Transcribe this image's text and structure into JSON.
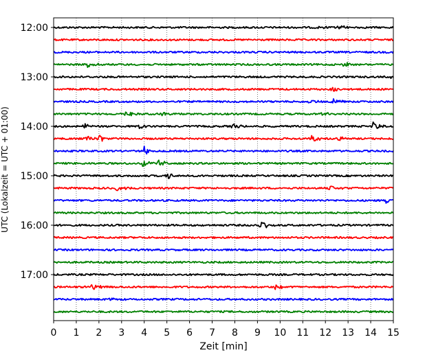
{
  "chart_data": {
    "type": "line",
    "title": "",
    "xlabel": "Zeit  [min]",
    "ylabel": "UTC (Lokalzeit = UTC + 01:00)",
    "xlim": [
      0,
      15
    ],
    "x_ticks": [
      0,
      1,
      2,
      3,
      4,
      5,
      6,
      7,
      8,
      9,
      10,
      11,
      12,
      13,
      14,
      15
    ],
    "x_tick_labels": [
      "0",
      "1",
      "2",
      "3",
      "4",
      "5",
      "6",
      "7",
      "8",
      "9",
      "10",
      "11",
      "12",
      "13",
      "14",
      "15"
    ],
    "y_tick_labels": [
      "12:00",
      "13:00",
      "14:00",
      "15:00",
      "16:00",
      "17:00"
    ],
    "y_tick_traces": [
      0,
      4,
      8,
      12,
      16,
      20
    ],
    "grid": "x-dotted",
    "trace_colors": [
      "#000000",
      "#ff0000",
      "#0000ff",
      "#008000"
    ],
    "traces": [
      {
        "start": "12:00",
        "events": [
          {
            "t": 11.6,
            "amp": 0.18
          },
          {
            "t": 12.6,
            "amp": 0.25
          }
        ]
      },
      {
        "start": "12:15",
        "events": []
      },
      {
        "start": "12:30",
        "events": []
      },
      {
        "start": "12:45",
        "events": [
          {
            "t": 1.5,
            "amp": 0.35
          },
          {
            "t": 12.8,
            "amp": 0.4
          }
        ]
      },
      {
        "start": "13:00",
        "events": [
          {
            "t": 14.8,
            "amp": 0.35
          }
        ]
      },
      {
        "start": "13:15",
        "events": [
          {
            "t": 12.3,
            "amp": 0.25
          }
        ]
      },
      {
        "start": "13:30",
        "events": [
          {
            "t": 11.3,
            "amp": 0.22
          },
          {
            "t": 12.3,
            "amp": 0.35
          }
        ]
      },
      {
        "start": "13:45",
        "events": [
          {
            "t": 3.2,
            "amp": 0.3
          },
          {
            "t": 4.8,
            "amp": 0.3
          },
          {
            "t": 11.8,
            "amp": 0.3
          }
        ]
      },
      {
        "start": "14:00",
        "events": [
          {
            "t": 1.3,
            "amp": 0.35
          },
          {
            "t": 3.8,
            "amp": 0.4
          },
          {
            "t": 7.9,
            "amp": 0.3
          },
          {
            "t": 14.1,
            "amp": 0.5
          }
        ]
      },
      {
        "start": "14:15",
        "events": [
          {
            "t": 1.4,
            "amp": 0.45
          },
          {
            "t": 2.0,
            "amp": 0.4
          },
          {
            "t": 11.4,
            "amp": 0.45
          },
          {
            "t": 12.5,
            "amp": 0.4
          }
        ]
      },
      {
        "start": "14:30",
        "events": [
          {
            "t": 4.0,
            "amp": 0.45
          }
        ]
      },
      {
        "start": "14:45",
        "events": [
          {
            "t": 3.9,
            "amp": 0.4
          },
          {
            "t": 4.6,
            "amp": 0.45
          }
        ]
      },
      {
        "start": "15:00",
        "events": [
          {
            "t": 5.0,
            "amp": 0.4
          }
        ]
      },
      {
        "start": "15:15",
        "events": [
          {
            "t": 2.8,
            "amp": 0.45
          },
          {
            "t": 12.2,
            "amp": 0.3
          }
        ]
      },
      {
        "start": "15:30",
        "events": [
          {
            "t": 14.7,
            "amp": 0.3
          }
        ]
      },
      {
        "start": "15:45",
        "events": []
      },
      {
        "start": "16:00",
        "events": [
          {
            "t": 9.1,
            "amp": 0.85
          }
        ]
      },
      {
        "start": "16:15",
        "events": []
      },
      {
        "start": "16:30",
        "events": []
      },
      {
        "start": "16:45",
        "events": []
      },
      {
        "start": "17:00",
        "events": []
      },
      {
        "start": "17:15",
        "events": [
          {
            "t": 1.7,
            "amp": 0.45
          },
          {
            "t": 9.8,
            "amp": 0.4
          }
        ]
      },
      {
        "start": "17:30",
        "events": [
          {
            "t": 2.5,
            "amp": 0.2
          }
        ]
      },
      {
        "start": "17:45",
        "events": []
      }
    ]
  }
}
